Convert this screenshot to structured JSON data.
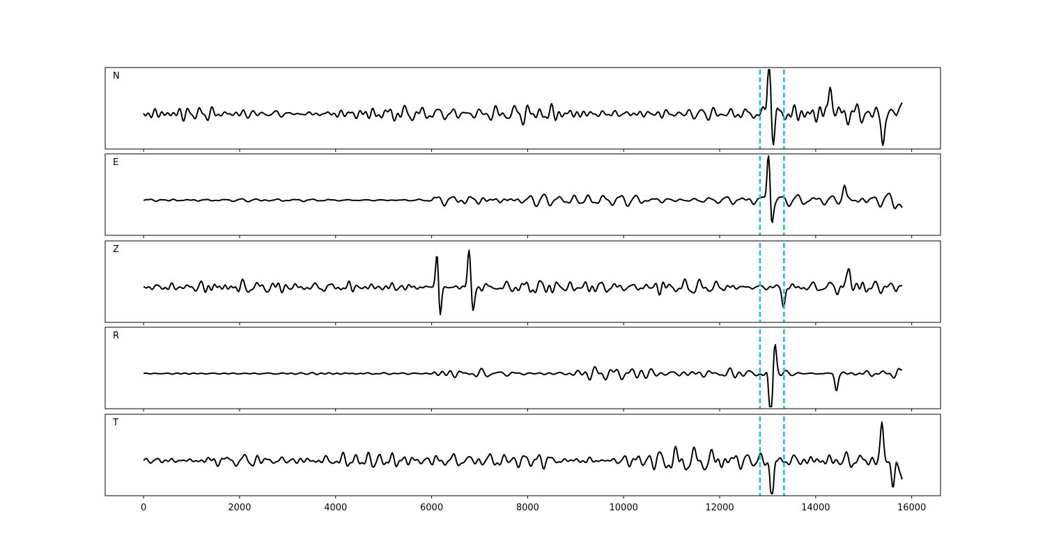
{
  "chart_data": {
    "type": "line",
    "title": "",
    "xlabel": "",
    "ylabel": "",
    "xlim": [
      -800,
      16600
    ],
    "x_ticks": [
      0,
      2000,
      4000,
      6000,
      8000,
      10000,
      12000,
      14000,
      16000
    ],
    "x_tick_labels": [
      "0",
      "2000",
      "4000",
      "6000",
      "8000",
      "10000",
      "12000",
      "14000",
      "16000"
    ],
    "n_samples": 15800,
    "y_ticks_shown": false,
    "grid": false,
    "trace_color": "#000000",
    "marker_color": "#17becf",
    "vertical_markers": [
      12840,
      13340
    ],
    "traces": [
      {
        "label": "N",
        "noise_amp": 0.34,
        "late_noise_amp": 0.42,
        "events": [
          [
            13030,
            1.5
          ],
          [
            13120,
            -0.7
          ],
          [
            14300,
            0.9
          ],
          [
            15400,
            -0.8
          ]
        ],
        "end_value": 0.3
      },
      {
        "label": "E",
        "noise_amp": 0.08,
        "late_noise_amp": 0.3,
        "events": [
          [
            13020,
            1.4
          ],
          [
            13080,
            -0.75
          ],
          [
            14600,
            0.4
          ]
        ],
        "end_value": -0.2
      },
      {
        "label": "Z",
        "noise_amp": 0.3,
        "late_noise_amp": 0.32,
        "events": [
          [
            6120,
            1.1
          ],
          [
            6170,
            -0.95
          ],
          [
            6780,
            1.0
          ],
          [
            6860,
            -0.7
          ],
          [
            13330,
            -0.5
          ],
          [
            14700,
            0.55
          ]
        ],
        "end_value": 0.05
      },
      {
        "label": "R",
        "noise_amp": 0.06,
        "late_noise_amp": 0.25,
        "events": [
          [
            13060,
            -1.5
          ],
          [
            13150,
            0.85
          ],
          [
            14430,
            -0.45
          ]
        ],
        "end_value": 0.1
      },
      {
        "label": "T",
        "noise_amp": 0.34,
        "late_noise_amp": 0.42,
        "events": [
          [
            13090,
            -1.2
          ],
          [
            15380,
            0.95
          ],
          [
            15610,
            -0.7
          ]
        ],
        "end_value": -0.5
      }
    ]
  }
}
